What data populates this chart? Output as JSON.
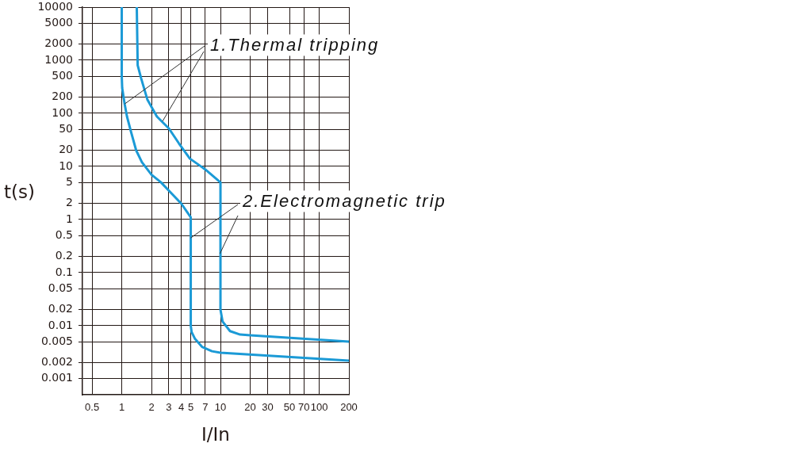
{
  "chart_data": {
    "type": "line",
    "xlabel": "I/In",
    "ylabel": "t(s)",
    "log": "xy",
    "series": [
      {
        "color": "#1b9ad6",
        "x": [
          1,
          1,
          1.01,
          1.07,
          1.13,
          1.24,
          1.4,
          1.6,
          2,
          2.5,
          3,
          4,
          5,
          5,
          5.1,
          5.5,
          6.5,
          8.2,
          10,
          200
        ],
        "values": [
          10000,
          500,
          300,
          150,
          87,
          45,
          20,
          12,
          7,
          5,
          3.5,
          2,
          1.1,
          0.01,
          0.0076,
          0.0057,
          0.004,
          0.0033,
          0.0031,
          0.0022
        ]
      },
      {
        "color": "#1b9ad6",
        "x": [
          1.42,
          1.45,
          1.57,
          1.82,
          2.27,
          3,
          3.8,
          4.9,
          7,
          10,
          10,
          10.5,
          12.5,
          15.8,
          20,
          200
        ],
        "values": [
          10000,
          800,
          460,
          180,
          87,
          52,
          27,
          14,
          8.8,
          5,
          0.02,
          0.012,
          0.0079,
          0.0068,
          0.0066,
          0.005
        ]
      }
    ],
    "xlim": [
      0.4,
      200
    ],
    "xticks": [
      0.5,
      1,
      2,
      3,
      4,
      5,
      7,
      10,
      20,
      30,
      50,
      70,
      100,
      200
    ],
    "ylim": [
      0.0005,
      10000
    ],
    "yticks": [
      0.001,
      0.002,
      0.005,
      0.01,
      0.02,
      0.05,
      0.1,
      0.2,
      0.5,
      1,
      2,
      5,
      10,
      20,
      50,
      100,
      200,
      500,
      1000,
      2000,
      5000,
      10000
    ],
    "grid": true,
    "marker": "none",
    "line_style": "solid",
    "annotations": [
      {
        "text": "1.Thermal tripping",
        "x": 1.07,
        "y": 150
      },
      {
        "text": "2.Electromagnetic trip",
        "x": 5,
        "y": 0.45
      }
    ]
  }
}
